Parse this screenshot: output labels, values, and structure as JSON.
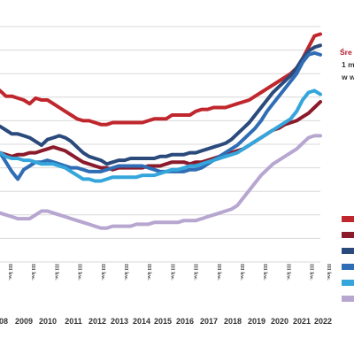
{
  "chart_data": {
    "type": "line",
    "title": "",
    "xlabel": "",
    "ylabel": "",
    "y_ticks_labeled": false,
    "grid": true,
    "x_year_labels": [
      "08",
      "2009",
      "2010",
      "2011",
      "2012",
      "2013",
      "2014",
      "2015",
      "2016",
      "2017",
      "2018",
      "2019",
      "2020",
      "2021",
      "2022"
    ],
    "x_quarter_label": "III kw.",
    "legend": {
      "placement": "right",
      "title_lines": [
        "Śre",
        "1 m",
        "w w"
      ]
    },
    "x": [
      2008.5,
      2008.75,
      2009.0,
      2009.25,
      2009.5,
      2009.75,
      2010.0,
      2010.25,
      2010.5,
      2010.75,
      2011.0,
      2011.25,
      2011.5,
      2011.75,
      2012.0,
      2012.25,
      2012.5,
      2012.75,
      2013.0,
      2013.25,
      2013.5,
      2013.75,
      2014.0,
      2014.25,
      2014.5,
      2014.75,
      2015.0,
      2015.25,
      2015.5,
      2015.75,
      2016.0,
      2016.25,
      2016.5,
      2016.75,
      2017.0,
      2017.25,
      2017.5,
      2017.75,
      2018.0,
      2018.25,
      2018.5,
      2018.75,
      2019.0,
      2019.25,
      2019.5,
      2019.75,
      2020.0,
      2020.25,
      2020.5,
      2020.75,
      2021.0,
      2021.25,
      2021.5,
      2021.75,
      2022.0
    ],
    "series": [
      {
        "color": "#c0272d",
        "values": [
          71,
          68,
          68,
          67,
          66,
          64,
          67,
          66,
          66,
          64,
          62,
          60,
          58,
          56,
          55,
          55,
          54,
          53,
          53,
          54,
          54,
          54,
          54,
          54,
          54,
          55,
          56,
          56,
          56,
          58,
          58,
          58,
          58,
          60,
          61,
          61,
          62,
          62,
          62,
          63,
          64,
          65,
          66,
          68,
          70,
          72,
          74,
          76,
          78,
          80,
          83,
          88,
          94,
          100,
          101
        ]
      },
      {
        "color": "#8b1a2b",
        "values": [
          38,
          37,
          36,
          37,
          37,
          38,
          38,
          39,
          40,
          41,
          40,
          39,
          37,
          35,
          33,
          32,
          31,
          30,
          30,
          29,
          30,
          30,
          30,
          30,
          30,
          31,
          31,
          31,
          32,
          33,
          33,
          33,
          32,
          33,
          33,
          34,
          35,
          36,
          37,
          38,
          39,
          40,
          42,
          44,
          46,
          48,
          50,
          51,
          53,
          54,
          55,
          57,
          59,
          62,
          65
        ]
      },
      {
        "color": "#2b4a7c",
        "values": [
          52,
          50,
          48,
          48,
          47,
          46,
          44,
          42,
          45,
          46,
          47,
          46,
          44,
          41,
          38,
          36,
          35,
          34,
          32,
          33,
          34,
          34,
          35,
          35,
          35,
          35,
          35,
          36,
          36,
          37,
          37,
          37,
          38,
          38,
          39,
          40,
          41,
          42,
          43,
          45,
          48,
          51,
          54,
          58,
          62,
          66,
          70,
          73,
          76,
          79,
          83,
          88,
          92,
          94,
          95
        ]
      },
      {
        "color": "#2f6db5",
        "values": [
          38,
          33,
          28,
          24,
          29,
          31,
          33,
          33,
          34,
          33,
          32,
          31,
          30,
          30,
          29,
          28,
          28,
          28,
          29,
          30,
          31,
          31,
          31,
          31,
          31,
          30,
          29,
          28,
          28,
          28,
          28,
          28,
          29,
          29,
          30,
          32,
          34,
          36,
          38,
          40,
          42,
          45,
          48,
          51,
          55,
          60,
          64,
          68,
          72,
          76,
          80,
          86,
          90,
          91,
          90
        ]
      },
      {
        "color": "#34a6dc",
        "values": [
          38,
          36,
          35,
          35,
          34,
          34,
          33,
          32,
          32,
          32,
          31,
          30,
          28,
          26,
          24,
          24,
          23,
          23,
          24,
          25,
          25,
          25,
          25,
          25,
          26,
          26,
          26,
          27,
          28,
          29,
          29,
          30,
          31,
          31,
          32,
          33,
          34,
          35,
          36,
          37,
          38,
          40,
          42,
          44,
          46,
          48,
          50,
          52,
          54,
          56,
          60,
          66,
          70,
          71,
          69
        ]
      },
      {
        "color": "#b6a6d0",
        "values": [
          6,
          5,
          4,
          3,
          3,
          3,
          5,
          7,
          7,
          6,
          5,
          4,
          3,
          2,
          1,
          0,
          -1,
          -2,
          -2,
          -1,
          -1,
          -1,
          -1,
          0,
          0,
          0,
          1,
          1,
          1,
          1,
          1,
          2,
          2,
          2,
          3,
          4,
          5,
          6,
          7,
          8,
          10,
          14,
          18,
          22,
          26,
          29,
          32,
          34,
          36,
          38,
          40,
          43,
          46,
          47,
          47
        ]
      }
    ]
  },
  "legend_colors": [
    "#c0272d",
    "#8b1a2b",
    "#2b4a7c",
    "#2f6db5",
    "#34a6dc",
    "#b6a6d0"
  ]
}
